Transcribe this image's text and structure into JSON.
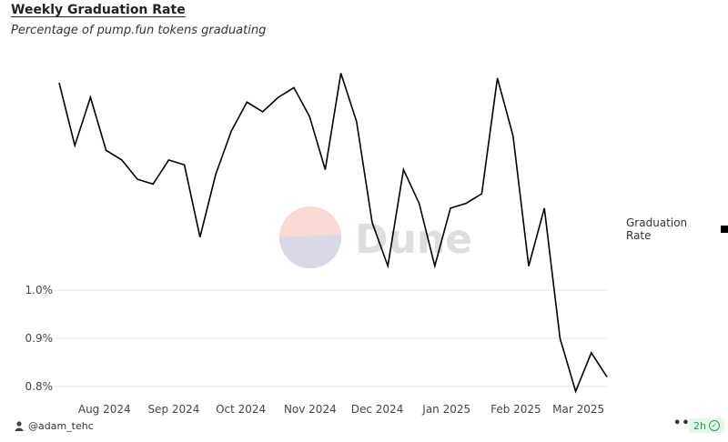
{
  "header": {
    "title": "Weekly Graduation Rate",
    "subtitle": "Percentage of pump.fun tokens graduating"
  },
  "watermark": {
    "text": "Dune"
  },
  "legend": {
    "label": "Graduation Rate",
    "color": "#000000"
  },
  "footer": {
    "author": "@adam_tehc",
    "more": "•••",
    "age": "2h"
  },
  "chart_data": {
    "type": "line",
    "x_tick_labels": [
      "Aug 2024",
      "Sep 2024",
      "Oct 2024",
      "Nov 2024",
      "Dec 2024",
      "Jan 2025",
      "Feb 2025",
      "Mar 2025"
    ],
    "y_tick_labels": [
      "1.0%",
      "0.9%",
      "0.8%"
    ],
    "y_ticks": [
      1.0,
      0.9,
      0.8
    ],
    "ylim": [
      0.78,
      1.47
    ],
    "x": [
      "2024-07-15",
      "2024-07-22",
      "2024-07-29",
      "2024-08-05",
      "2024-08-12",
      "2024-08-19",
      "2024-08-26",
      "2024-09-02",
      "2024-09-09",
      "2024-09-16",
      "2024-09-23",
      "2024-09-30",
      "2024-10-07",
      "2024-10-14",
      "2024-10-21",
      "2024-10-28",
      "2024-11-04",
      "2024-11-11",
      "2024-11-18",
      "2024-11-25",
      "2024-12-02",
      "2024-12-09",
      "2024-12-16",
      "2024-12-23",
      "2024-12-30",
      "2025-01-06",
      "2025-01-13",
      "2025-01-20",
      "2025-01-27",
      "2025-02-03",
      "2025-02-10",
      "2025-02-17",
      "2025-02-24",
      "2025-03-03",
      "2025-03-10",
      "2025-03-17"
    ],
    "series": [
      {
        "name": "Graduation Rate",
        "color": "#000000",
        "values": [
          1.43,
          1.3,
          1.4,
          1.29,
          1.27,
          1.23,
          1.22,
          1.27,
          1.26,
          1.11,
          1.24,
          1.33,
          1.39,
          1.37,
          1.4,
          1.42,
          1.36,
          1.25,
          1.45,
          1.35,
          1.14,
          1.05,
          1.25,
          1.18,
          1.05,
          1.17,
          1.18,
          1.2,
          1.44,
          1.32,
          1.05,
          1.17,
          0.9,
          0.79,
          0.87,
          0.82
        ]
      }
    ],
    "xlabel": "",
    "ylabel": "",
    "grid": true,
    "legend_position": "right"
  }
}
